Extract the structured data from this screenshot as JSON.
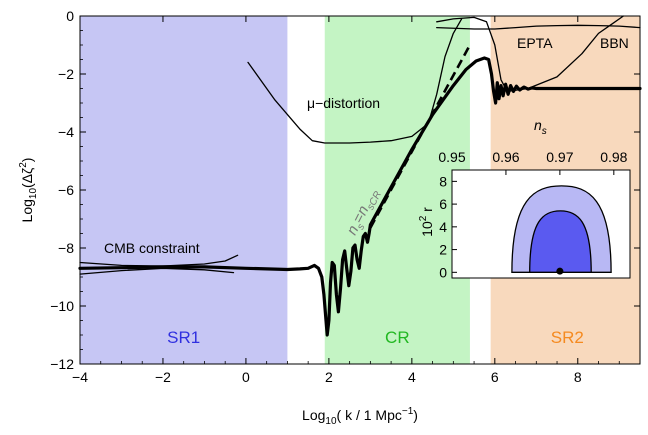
{
  "chart_data": [
    {
      "type": "line",
      "title": "",
      "xlabel": "Log10(k / 1 Mpc-1)",
      "ylabel": "Log10(Δζ2)",
      "xlim": [
        -4,
        9.5
      ],
      "ylim": [
        -12,
        0
      ],
      "x_ticks": [
        -4,
        -2,
        0,
        2,
        4,
        6,
        8
      ],
      "y_ticks": [
        0,
        -2,
        -4,
        -6,
        -8,
        -10,
        -12
      ],
      "x_tick_labels": [
        "−4",
        "−2",
        "0",
        "2",
        "4",
        "6",
        "8"
      ],
      "y_tick_labels": [
        "0",
        "−2",
        "−4",
        "−6",
        "−8",
        "−10",
        "−12"
      ],
      "regions": [
        {
          "label": "SR1",
          "x": [
            -4,
            1.0
          ],
          "color": "#c6c6f4",
          "text_color": "#3030e0"
        },
        {
          "label": "CR",
          "x": [
            1.9,
            5.4
          ],
          "color": "#c4f4c4",
          "text_color": "#22b822"
        },
        {
          "label": "SR2",
          "x": [
            5.9,
            9.5
          ],
          "color": "#f8d9bd",
          "text_color": "#f58a20"
        }
      ],
      "annotations": {
        "mu": "μ−distortion",
        "cmb": "CMB constraint",
        "epta": "EPTA",
        "bbn": "BBN",
        "ns_cr_sub1": "s",
        "ns_cr_sub2": "sCR"
      },
      "series": [
        {
          "role": "power-spectrum",
          "style": "thick",
          "x": [
            -4.0,
            -3.0,
            -2.0,
            -1.0,
            0.0,
            0.5,
            1.0,
            1.3,
            1.5,
            1.65,
            1.75,
            1.83,
            1.88,
            1.93,
            1.96,
            2.0,
            2.04,
            2.08,
            2.13,
            2.18,
            2.23,
            2.28,
            2.33,
            2.38,
            2.43,
            2.48,
            2.53,
            2.58,
            2.63,
            2.68,
            2.73,
            2.78,
            2.83,
            2.88,
            2.93,
            2.97,
            3.0,
            3.5,
            4.0,
            4.5,
            5.0,
            5.3,
            5.55,
            5.75,
            5.85,
            5.92,
            5.97,
            6.02,
            6.06,
            6.1,
            6.15,
            6.2,
            6.26,
            6.32,
            6.38,
            6.45,
            6.52,
            6.6,
            6.7,
            6.8,
            6.9,
            7.0,
            7.5,
            8.0,
            8.5,
            9.0,
            9.5
          ],
          "y": [
            -8.7,
            -8.68,
            -8.65,
            -8.65,
            -8.7,
            -8.72,
            -8.74,
            -8.72,
            -8.7,
            -8.6,
            -8.7,
            -9.0,
            -9.6,
            -10.5,
            -11.0,
            -10.5,
            -9.2,
            -8.5,
            -8.6,
            -9.6,
            -10.2,
            -9.4,
            -8.4,
            -8.1,
            -8.7,
            -9.3,
            -8.8,
            -8.0,
            -7.9,
            -8.4,
            -8.7,
            -8.1,
            -7.6,
            -7.5,
            -7.8,
            -7.5,
            -7.2,
            -5.9,
            -4.6,
            -3.4,
            -2.4,
            -1.85,
            -1.55,
            -1.45,
            -1.5,
            -2.0,
            -2.6,
            -3.0,
            -2.3,
            -2.85,
            -2.4,
            -2.75,
            -2.35,
            -2.7,
            -2.4,
            -2.6,
            -2.42,
            -2.55,
            -2.45,
            -2.52,
            -2.48,
            -2.5,
            -2.5,
            -2.5,
            -2.5,
            -2.5,
            -2.5
          ]
        },
        {
          "role": "ns-equals-nsCR",
          "style": "dashed",
          "x": [
            3.0,
            5.4
          ],
          "y": [
            -7.3,
            -1.0
          ]
        },
        {
          "role": "mu-distortion",
          "style": "thin",
          "x": [
            0.05,
            0.7,
            1.3,
            1.6,
            1.9,
            2.5,
            3.0,
            3.5,
            4.0,
            4.4,
            4.6,
            4.8,
            5.0,
            5.2
          ],
          "y": [
            -1.6,
            -2.9,
            -3.9,
            -4.3,
            -4.38,
            -4.38,
            -4.35,
            -4.3,
            -4.15,
            -3.7,
            -2.7,
            -1.4,
            -0.6,
            -0.1
          ]
        },
        {
          "role": "cmb-constraint-upper",
          "style": "thin",
          "x": [
            -4.0,
            -3.0,
            -2.0,
            -1.0,
            -0.5,
            -0.2
          ],
          "y": [
            -8.5,
            -8.6,
            -8.62,
            -8.55,
            -8.45,
            -8.25
          ]
        },
        {
          "role": "cmb-constraint-lower",
          "style": "thin",
          "x": [
            -4.0,
            -3.0,
            -2.0,
            -1.0,
            -0.3
          ],
          "y": [
            -8.9,
            -8.78,
            -8.7,
            -8.75,
            -8.85
          ]
        },
        {
          "role": "epta",
          "style": "thin",
          "x": [
            4.6,
            5.0,
            5.5,
            5.8,
            6.0,
            6.15,
            6.3,
            6.8,
            7.5,
            8.1,
            8.5,
            8.8,
            9.1
          ],
          "y": [
            -0.2,
            -0.1,
            -0.05,
            -0.2,
            -1.0,
            -2.2,
            -2.6,
            -2.5,
            -2.1,
            -1.3,
            -0.6,
            -0.3,
            0.0
          ]
        },
        {
          "role": "bbn",
          "style": "thin",
          "x": [
            4.6,
            5.5,
            6.0,
            6.5,
            7.0,
            7.5,
            8.0,
            8.5,
            9.0,
            9.5
          ],
          "y": [
            -0.4,
            -0.45,
            -0.45,
            -0.4,
            -0.35,
            -0.33,
            -0.32,
            -0.33,
            -0.35,
            -0.4
          ]
        }
      ]
    },
    {
      "type": "contour",
      "title": "",
      "xlabel": "n",
      "xlabel_sub": "s",
      "ylabel": "102 r",
      "xlim": [
        0.95,
        0.983
      ],
      "ylim": [
        -0.5,
        9
      ],
      "x_ticks": [
        0.95,
        0.96,
        0.97,
        0.98
      ],
      "x_tick_labels": [
        "0.95",
        "0.96",
        "0.97",
        "0.98"
      ],
      "y_ticks": [
        0,
        2,
        4,
        6,
        8
      ],
      "y_tick_labels": [
        "0",
        "2",
        "4",
        "6",
        "8"
      ],
      "contours": [
        {
          "level": "95%",
          "center_ns": 0.9703,
          "half_width_ns": 0.0092,
          "r_min": 0.0,
          "r_max": 7.6,
          "color": "#b8b8f4"
        },
        {
          "level": "68%",
          "center_ns": 0.9701,
          "half_width_ns": 0.0057,
          "r_min": 0.0,
          "r_max": 5.4,
          "color": "#5a5af0"
        }
      ],
      "point": {
        "ns": 0.97,
        "r": 0.1
      }
    }
  ]
}
